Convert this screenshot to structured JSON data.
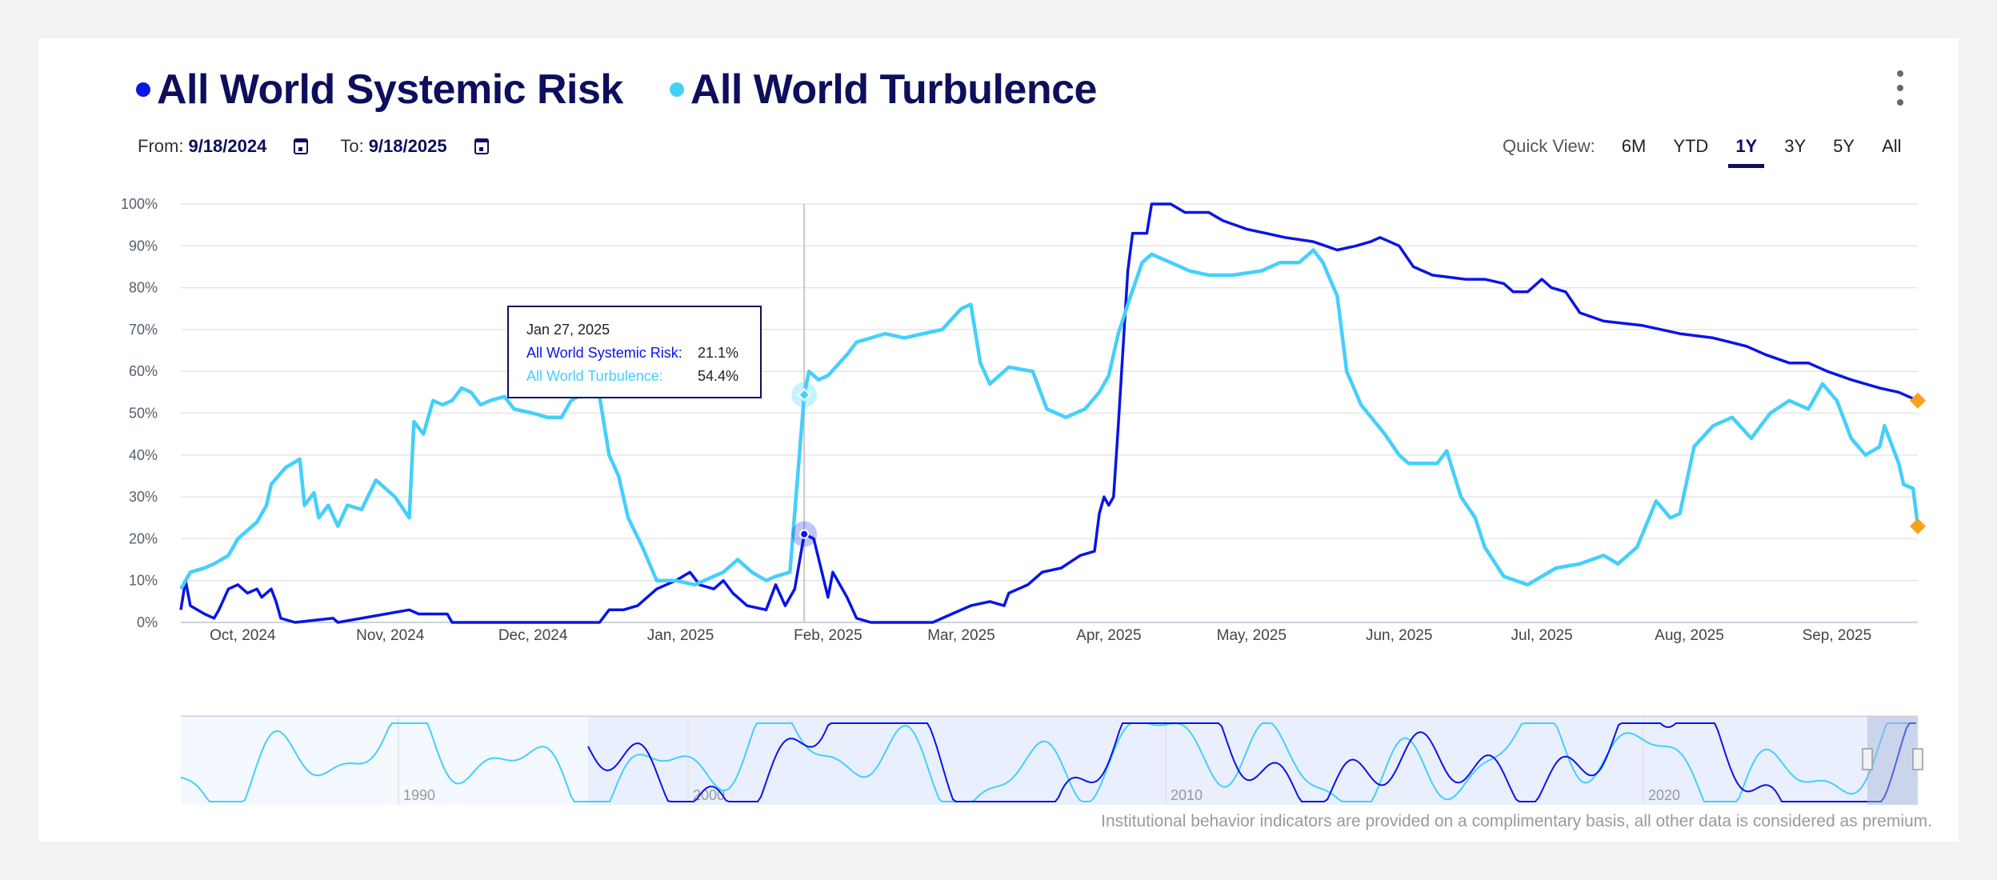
{
  "legend": {
    "series": [
      {
        "name": "All World Systemic Risk",
        "color": "#0a14e6"
      },
      {
        "name": "All World Turbulence",
        "color": "#45cffc"
      }
    ]
  },
  "menu_icon": "kebab-vertical-icon",
  "date_range": {
    "from_label": "From:",
    "from": "9/18/2024",
    "to_label": "To:",
    "to": "9/18/2025",
    "icon": "calendar-icon"
  },
  "quick_view": {
    "label": "Quick View:",
    "options": [
      "6M",
      "YTD",
      "1Y",
      "3Y",
      "5Y",
      "All"
    ],
    "selected": "1Y"
  },
  "tooltip": {
    "date": "Jan 27, 2025",
    "rows": [
      {
        "label": "All World Systemic Risk:",
        "value": "21.1%"
      },
      {
        "label": "All World Turbulence:",
        "value": "54.4%"
      }
    ]
  },
  "navigator": {
    "year_labels": [
      "1990",
      "2000",
      "2010",
      "2020"
    ]
  },
  "footer_note": "Institutional behavior indicators are provided on a complimentary basis, all other data is considered as premium.",
  "chart_data": {
    "type": "line",
    "xlabel": "",
    "ylabel": "",
    "xlim": [
      "2024-09-18",
      "2025-09-18"
    ],
    "ylim": [
      0,
      100
    ],
    "y_ticks": [
      "0%",
      "10%",
      "20%",
      "30%",
      "40%",
      "50%",
      "60%",
      "70%",
      "80%",
      "90%",
      "100%"
    ],
    "x_ticks": [
      {
        "date": "2024-10-01",
        "label": "Oct, 2024"
      },
      {
        "date": "2024-11-01",
        "label": "Nov, 2024"
      },
      {
        "date": "2024-12-01",
        "label": "Dec, 2024"
      },
      {
        "date": "2025-01-01",
        "label": "Jan, 2025"
      },
      {
        "date": "2025-02-01",
        "label": "Feb, 2025"
      },
      {
        "date": "2025-03-01",
        "label": "Mar, 2025"
      },
      {
        "date": "2025-04-01",
        "label": "Apr, 2025"
      },
      {
        "date": "2025-05-01",
        "label": "May, 2025"
      },
      {
        "date": "2025-06-01",
        "label": "Jun, 2025"
      },
      {
        "date": "2025-07-01",
        "label": "Jul, 2025"
      },
      {
        "date": "2025-08-01",
        "label": "Aug, 2025"
      },
      {
        "date": "2025-09-01",
        "label": "Sep, 2025"
      }
    ],
    "grid": true,
    "crosshair_date": "2025-01-27",
    "series": [
      {
        "name": "All World Systemic Risk",
        "color": "#0a14e6",
        "points": [
          [
            "2024-09-18",
            3
          ],
          [
            "2024-09-19",
            10
          ],
          [
            "2024-09-20",
            4
          ],
          [
            "2024-09-23",
            2
          ],
          [
            "2024-09-25",
            1
          ],
          [
            "2024-09-26",
            3
          ],
          [
            "2024-09-28",
            8
          ],
          [
            "2024-09-30",
            9
          ],
          [
            "2024-10-02",
            7
          ],
          [
            "2024-10-04",
            8
          ],
          [
            "2024-10-05",
            6
          ],
          [
            "2024-10-07",
            8
          ],
          [
            "2024-10-08",
            5
          ],
          [
            "2024-10-09",
            1
          ],
          [
            "2024-10-12",
            0
          ],
          [
            "2024-10-20",
            1
          ],
          [
            "2024-10-21",
            0
          ],
          [
            "2024-11-05",
            3
          ],
          [
            "2024-11-07",
            2
          ],
          [
            "2024-11-13",
            2
          ],
          [
            "2024-11-14",
            0
          ],
          [
            "2024-12-15",
            0
          ],
          [
            "2024-12-17",
            3
          ],
          [
            "2024-12-20",
            3
          ],
          [
            "2024-12-23",
            4
          ],
          [
            "2024-12-27",
            8
          ],
          [
            "2024-12-31",
            10
          ],
          [
            "2025-01-03",
            12
          ],
          [
            "2025-01-05",
            9
          ],
          [
            "2025-01-08",
            8
          ],
          [
            "2025-01-10",
            10
          ],
          [
            "2025-01-12",
            7
          ],
          [
            "2025-01-15",
            4
          ],
          [
            "2025-01-19",
            3
          ],
          [
            "2025-01-21",
            9
          ],
          [
            "2025-01-23",
            4
          ],
          [
            "2025-01-25",
            8
          ],
          [
            "2025-01-27",
            21.1
          ],
          [
            "2025-01-29",
            20
          ],
          [
            "2025-02-01",
            6
          ],
          [
            "2025-02-02",
            12
          ],
          [
            "2025-02-05",
            6
          ],
          [
            "2025-02-07",
            1
          ],
          [
            "2025-02-10",
            0
          ],
          [
            "2025-02-23",
            0
          ],
          [
            "2025-02-27",
            2
          ],
          [
            "2025-03-03",
            4
          ],
          [
            "2025-03-07",
            5
          ],
          [
            "2025-03-10",
            4
          ],
          [
            "2025-03-11",
            7
          ],
          [
            "2025-03-15",
            9
          ],
          [
            "2025-03-18",
            12
          ],
          [
            "2025-03-22",
            13
          ],
          [
            "2025-03-26",
            16
          ],
          [
            "2025-03-29",
            17
          ],
          [
            "2025-03-30",
            26
          ],
          [
            "2025-03-31",
            30
          ],
          [
            "2025-04-01",
            28
          ],
          [
            "2025-04-02",
            30
          ],
          [
            "2025-04-03",
            47
          ],
          [
            "2025-04-05",
            84
          ],
          [
            "2025-04-06",
            93
          ],
          [
            "2025-04-09",
            93
          ],
          [
            "2025-04-10",
            100
          ],
          [
            "2025-04-14",
            100
          ],
          [
            "2025-04-17",
            98
          ],
          [
            "2025-04-22",
            98
          ],
          [
            "2025-04-25",
            96
          ],
          [
            "2025-04-30",
            94
          ],
          [
            "2025-05-04",
            93
          ],
          [
            "2025-05-08",
            92
          ],
          [
            "2025-05-14",
            91
          ],
          [
            "2025-05-19",
            89
          ],
          [
            "2025-05-23",
            90
          ],
          [
            "2025-05-26",
            91
          ],
          [
            "2025-05-28",
            92
          ],
          [
            "2025-06-01",
            90
          ],
          [
            "2025-06-04",
            85
          ],
          [
            "2025-06-08",
            83
          ],
          [
            "2025-06-15",
            82
          ],
          [
            "2025-06-19",
            82
          ],
          [
            "2025-06-23",
            81
          ],
          [
            "2025-06-25",
            79
          ],
          [
            "2025-06-28",
            79
          ],
          [
            "2025-07-01",
            82
          ],
          [
            "2025-07-03",
            80
          ],
          [
            "2025-07-06",
            79
          ],
          [
            "2025-07-09",
            74
          ],
          [
            "2025-07-14",
            72
          ],
          [
            "2025-07-22",
            71
          ],
          [
            "2025-07-30",
            69
          ],
          [
            "2025-08-06",
            68
          ],
          [
            "2025-08-13",
            66
          ],
          [
            "2025-08-17",
            64
          ],
          [
            "2025-08-22",
            62
          ],
          [
            "2025-08-26",
            62
          ],
          [
            "2025-08-30",
            60
          ],
          [
            "2025-09-04",
            58
          ],
          [
            "2025-09-10",
            56
          ],
          [
            "2025-09-14",
            55
          ],
          [
            "2025-09-18",
            53
          ]
        ]
      },
      {
        "name": "All World Turbulence",
        "color": "#45cffc",
        "points": [
          [
            "2024-09-18",
            8
          ],
          [
            "2024-09-20",
            12
          ],
          [
            "2024-09-23",
            13
          ],
          [
            "2024-09-25",
            14
          ],
          [
            "2024-09-28",
            16
          ],
          [
            "2024-09-30",
            20
          ],
          [
            "2024-10-04",
            24
          ],
          [
            "2024-10-06",
            28
          ],
          [
            "2024-10-07",
            33
          ],
          [
            "2024-10-10",
            37
          ],
          [
            "2024-10-13",
            39
          ],
          [
            "2024-10-14",
            28
          ],
          [
            "2024-10-16",
            31
          ],
          [
            "2024-10-17",
            25
          ],
          [
            "2024-10-19",
            28
          ],
          [
            "2024-10-21",
            23
          ],
          [
            "2024-10-23",
            28
          ],
          [
            "2024-10-26",
            27
          ],
          [
            "2024-10-29",
            34
          ],
          [
            "2024-11-02",
            30
          ],
          [
            "2024-11-05",
            25
          ],
          [
            "2024-11-06",
            48
          ],
          [
            "2024-11-08",
            45
          ],
          [
            "2024-11-10",
            53
          ],
          [
            "2024-11-12",
            52
          ],
          [
            "2024-11-14",
            53
          ],
          [
            "2024-11-16",
            56
          ],
          [
            "2024-11-18",
            55
          ],
          [
            "2024-11-20",
            52
          ],
          [
            "2024-11-22",
            53
          ],
          [
            "2024-11-25",
            54
          ],
          [
            "2024-11-27",
            51
          ],
          [
            "2024-12-01",
            50
          ],
          [
            "2024-12-04",
            49
          ],
          [
            "2024-12-07",
            49
          ],
          [
            "2024-12-09",
            53
          ],
          [
            "2024-12-12",
            55
          ],
          [
            "2024-12-15",
            54
          ],
          [
            "2024-12-17",
            40
          ],
          [
            "2024-12-19",
            35
          ],
          [
            "2024-12-21",
            25
          ],
          [
            "2024-12-24",
            18
          ],
          [
            "2024-12-27",
            10
          ],
          [
            "2024-12-31",
            10
          ],
          [
            "2025-01-04",
            9
          ],
          [
            "2025-01-06",
            10
          ],
          [
            "2025-01-10",
            12
          ],
          [
            "2025-01-13",
            15
          ],
          [
            "2025-01-16",
            12
          ],
          [
            "2025-01-19",
            10
          ],
          [
            "2025-01-21",
            11
          ],
          [
            "2025-01-24",
            12
          ],
          [
            "2025-01-27",
            54.4
          ],
          [
            "2025-01-28",
            60
          ],
          [
            "2025-01-30",
            58
          ],
          [
            "2025-02-01",
            59
          ],
          [
            "2025-02-05",
            64
          ],
          [
            "2025-02-07",
            67
          ],
          [
            "2025-02-13",
            69
          ],
          [
            "2025-02-17",
            68
          ],
          [
            "2025-02-21",
            69
          ],
          [
            "2025-02-25",
            70
          ],
          [
            "2025-03-01",
            75
          ],
          [
            "2025-03-03",
            76
          ],
          [
            "2025-03-05",
            62
          ],
          [
            "2025-03-07",
            57
          ],
          [
            "2025-03-11",
            61
          ],
          [
            "2025-03-16",
            60
          ],
          [
            "2025-03-19",
            51
          ],
          [
            "2025-03-23",
            49
          ],
          [
            "2025-03-27",
            51
          ],
          [
            "2025-03-30",
            55
          ],
          [
            "2025-04-01",
            59
          ],
          [
            "2025-04-03",
            69
          ],
          [
            "2025-04-05",
            76
          ],
          [
            "2025-04-08",
            86
          ],
          [
            "2025-04-10",
            88
          ],
          [
            "2025-04-14",
            86
          ],
          [
            "2025-04-18",
            84
          ],
          [
            "2025-04-22",
            83
          ],
          [
            "2025-04-27",
            83
          ],
          [
            "2025-05-03",
            84
          ],
          [
            "2025-05-07",
            86
          ],
          [
            "2025-05-11",
            86
          ],
          [
            "2025-05-14",
            89
          ],
          [
            "2025-05-16",
            86
          ],
          [
            "2025-05-19",
            78
          ],
          [
            "2025-05-21",
            60
          ],
          [
            "2025-05-24",
            52
          ],
          [
            "2025-05-29",
            45
          ],
          [
            "2025-06-01",
            40
          ],
          [
            "2025-06-03",
            38
          ],
          [
            "2025-06-09",
            38
          ],
          [
            "2025-06-11",
            41
          ],
          [
            "2025-06-14",
            30
          ],
          [
            "2025-06-17",
            25
          ],
          [
            "2025-06-19",
            18
          ],
          [
            "2025-06-23",
            11
          ],
          [
            "2025-06-28",
            9
          ],
          [
            "2025-07-01",
            11
          ],
          [
            "2025-07-04",
            13
          ],
          [
            "2025-07-09",
            14
          ],
          [
            "2025-07-14",
            16
          ],
          [
            "2025-07-17",
            14
          ],
          [
            "2025-07-21",
            18
          ],
          [
            "2025-07-25",
            29
          ],
          [
            "2025-07-28",
            25
          ],
          [
            "2025-07-30",
            26
          ],
          [
            "2025-08-02",
            42
          ],
          [
            "2025-08-06",
            47
          ],
          [
            "2025-08-10",
            49
          ],
          [
            "2025-08-14",
            44
          ],
          [
            "2025-08-18",
            50
          ],
          [
            "2025-08-22",
            53
          ],
          [
            "2025-08-26",
            51
          ],
          [
            "2025-08-29",
            57
          ],
          [
            "2025-09-01",
            53
          ],
          [
            "2025-09-04",
            44
          ],
          [
            "2025-09-07",
            40
          ],
          [
            "2025-09-10",
            42
          ],
          [
            "2025-09-11",
            47
          ],
          [
            "2025-09-14",
            38
          ],
          [
            "2025-09-15",
            33
          ],
          [
            "2025-09-17",
            32
          ],
          [
            "2025-09-18",
            23
          ]
        ]
      }
    ],
    "end_marker_color": "#f7a21b"
  }
}
